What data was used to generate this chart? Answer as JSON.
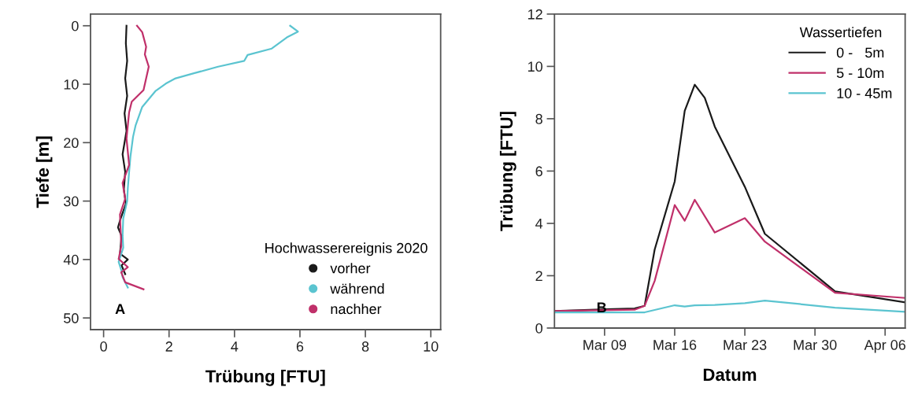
{
  "chart_data": [
    {
      "type": "line",
      "xlabel": "Trübung [FTU]",
      "ylabel": "Tiefe [m]",
      "xlim": [
        -0.4,
        10.3
      ],
      "ylim": [
        52,
        -2
      ],
      "xticks": [
        0,
        2,
        4,
        6,
        8,
        10
      ],
      "yticks": [
        0,
        10,
        20,
        30,
        40,
        50
      ],
      "legend": "bottom right",
      "legend_title": "Hochwasserereignis 2020",
      "annotations": [
        "A"
      ],
      "series": [
        {
          "name": "vorher",
          "color": "#1a1a1a",
          "x": [
            0.7,
            0.68,
            0.72,
            0.66,
            0.72,
            0.64,
            0.7,
            0.58,
            0.66,
            0.62,
            0.68,
            0.52,
            0.44,
            0.55,
            0.5,
            0.74,
            0.55,
            0.66
          ],
          "values": [
            0,
            3,
            6,
            9,
            12,
            15,
            18,
            22,
            25,
            28,
            30.5,
            33,
            34.5,
            36,
            39,
            40,
            41,
            42.5
          ]
        },
        {
          "name": "während",
          "color": "#5bc4d0",
          "x": [
            5.7,
            5.94,
            5.6,
            5.14,
            4.4,
            4.3,
            3.5,
            2.78,
            2.2,
            1.9,
            1.58,
            1.18,
            0.98,
            0.9,
            0.82,
            0.78,
            0.74,
            0.72,
            0.6,
            0.58,
            0.6,
            0.46,
            0.55,
            0.58,
            0.74
          ],
          "values": [
            0,
            1,
            2,
            3.9,
            5,
            6,
            7,
            8.1,
            9,
            9.9,
            11.2,
            13.9,
            17,
            19,
            22.4,
            25,
            27.8,
            30,
            33,
            35.9,
            38,
            40.4,
            42,
            43,
            44.8
          ]
        },
        {
          "name": "nachher",
          "color": "#c0306a",
          "x": [
            1.02,
            1.18,
            1.3,
            1.26,
            1.38,
            1.22,
            0.86,
            0.78,
            0.7,
            0.78,
            0.58,
            0.66,
            0.5,
            0.54,
            0.46,
            0.74,
            0.54,
            0.66,
            1.22
          ],
          "values": [
            0,
            1.1,
            3.6,
            4.9,
            7,
            11,
            13,
            14.8,
            19.3,
            23.8,
            26.9,
            29.6,
            32.3,
            37.7,
            39.9,
            41.3,
            42.2,
            43.9,
            45.1
          ]
        }
      ]
    },
    {
      "type": "line",
      "xlabel": "Datum",
      "ylabel": "Trübung [FTU]",
      "xlim": [
        "2020-03-04",
        "2020-04-08"
      ],
      "ylim": [
        0,
        12
      ],
      "xticks": [
        {
          "value": "2020-03-09",
          "label": "Mar 09"
        },
        {
          "value": "2020-03-16",
          "label": "Mar 16"
        },
        {
          "value": "2020-03-23",
          "label": "Mar 23"
        },
        {
          "value": "2020-03-30",
          "label": "Mar 30"
        },
        {
          "value": "2020-04-06",
          "label": "Apr 06"
        }
      ],
      "yticks": [
        0,
        2,
        4,
        6,
        8,
        10,
        12
      ],
      "legend": "top right",
      "legend_title": "Wassertiefen",
      "annotations": [
        "B"
      ],
      "x": [
        "2020-03-04",
        "2020-03-12",
        "2020-03-13",
        "2020-03-14",
        "2020-03-16",
        "2020-03-17",
        "2020-03-18",
        "2020-03-19",
        "2020-03-20",
        "2020-03-23",
        "2020-03-25",
        "2020-04-01",
        "2020-04-08"
      ],
      "series": [
        {
          "name": "0 -   5m",
          "color": "#1a1a1a",
          "values": [
            0.65,
            0.75,
            0.85,
            3.0,
            5.6,
            8.3,
            9.3,
            8.8,
            7.7,
            5.4,
            3.6,
            1.4,
            0.98
          ]
        },
        {
          "name": "5 - 10m",
          "color": "#c0306a",
          "values": [
            0.65,
            0.7,
            0.85,
            1.8,
            4.7,
            4.1,
            4.9,
            null,
            3.65,
            4.2,
            3.3,
            1.35,
            1.15
          ]
        },
        {
          "name": "10 - 45m",
          "color": "#5bc4d0",
          "values": [
            0.6,
            null,
            0.6,
            null,
            0.87,
            0.82,
            0.87,
            null,
            0.88,
            0.95,
            1.05,
            0.78,
            0.62
          ]
        }
      ]
    }
  ]
}
